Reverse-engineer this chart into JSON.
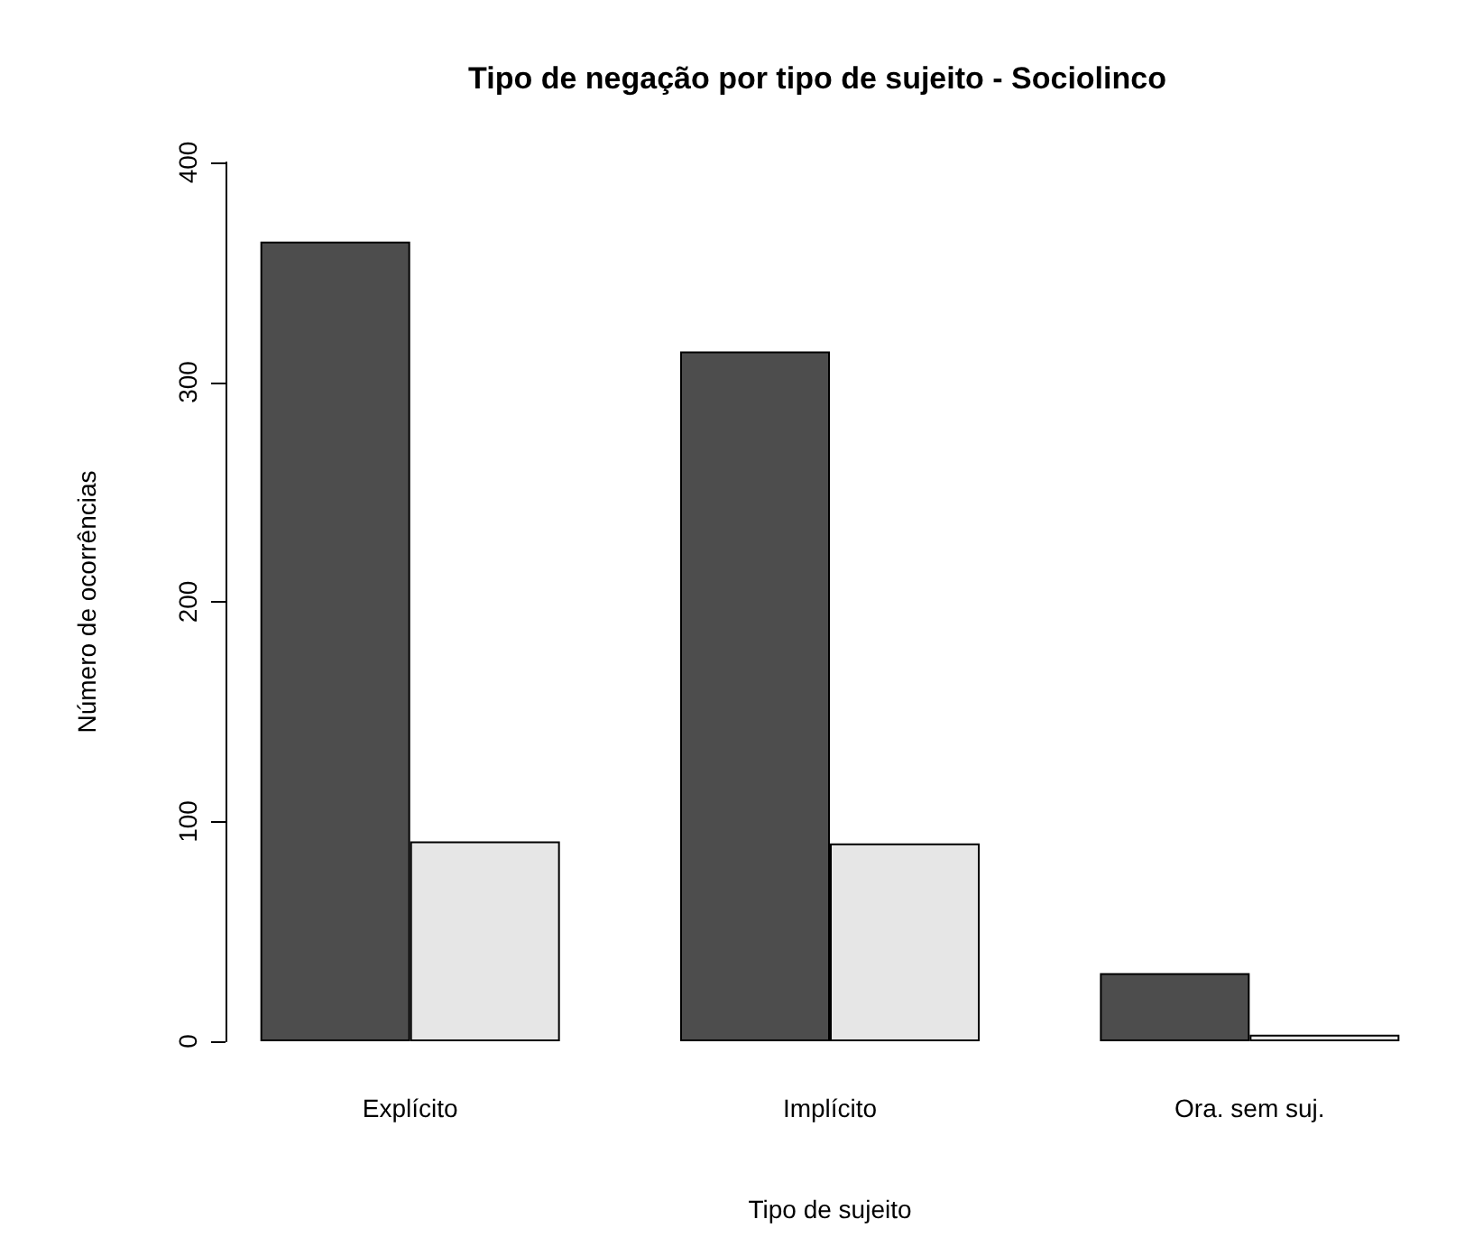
{
  "chart_data": {
    "type": "bar",
    "title": "Tipo de negação por tipo de sujeito - Sociolinco",
    "xlabel": "Tipo de sujeito",
    "ylabel": "Número de ocorrências",
    "categories": [
      "Explícito",
      "Implícito",
      "Ora. sem suj."
    ],
    "series": [
      {
        "color": "#4d4d4d",
        "values": [
          364,
          314,
          31
        ]
      },
      {
        "color": "#e6e6e6",
        "values": [
          91,
          90,
          3
        ]
      }
    ],
    "ylim": [
      0,
      400
    ],
    "yticks": [
      0,
      100,
      200,
      300,
      400
    ]
  }
}
